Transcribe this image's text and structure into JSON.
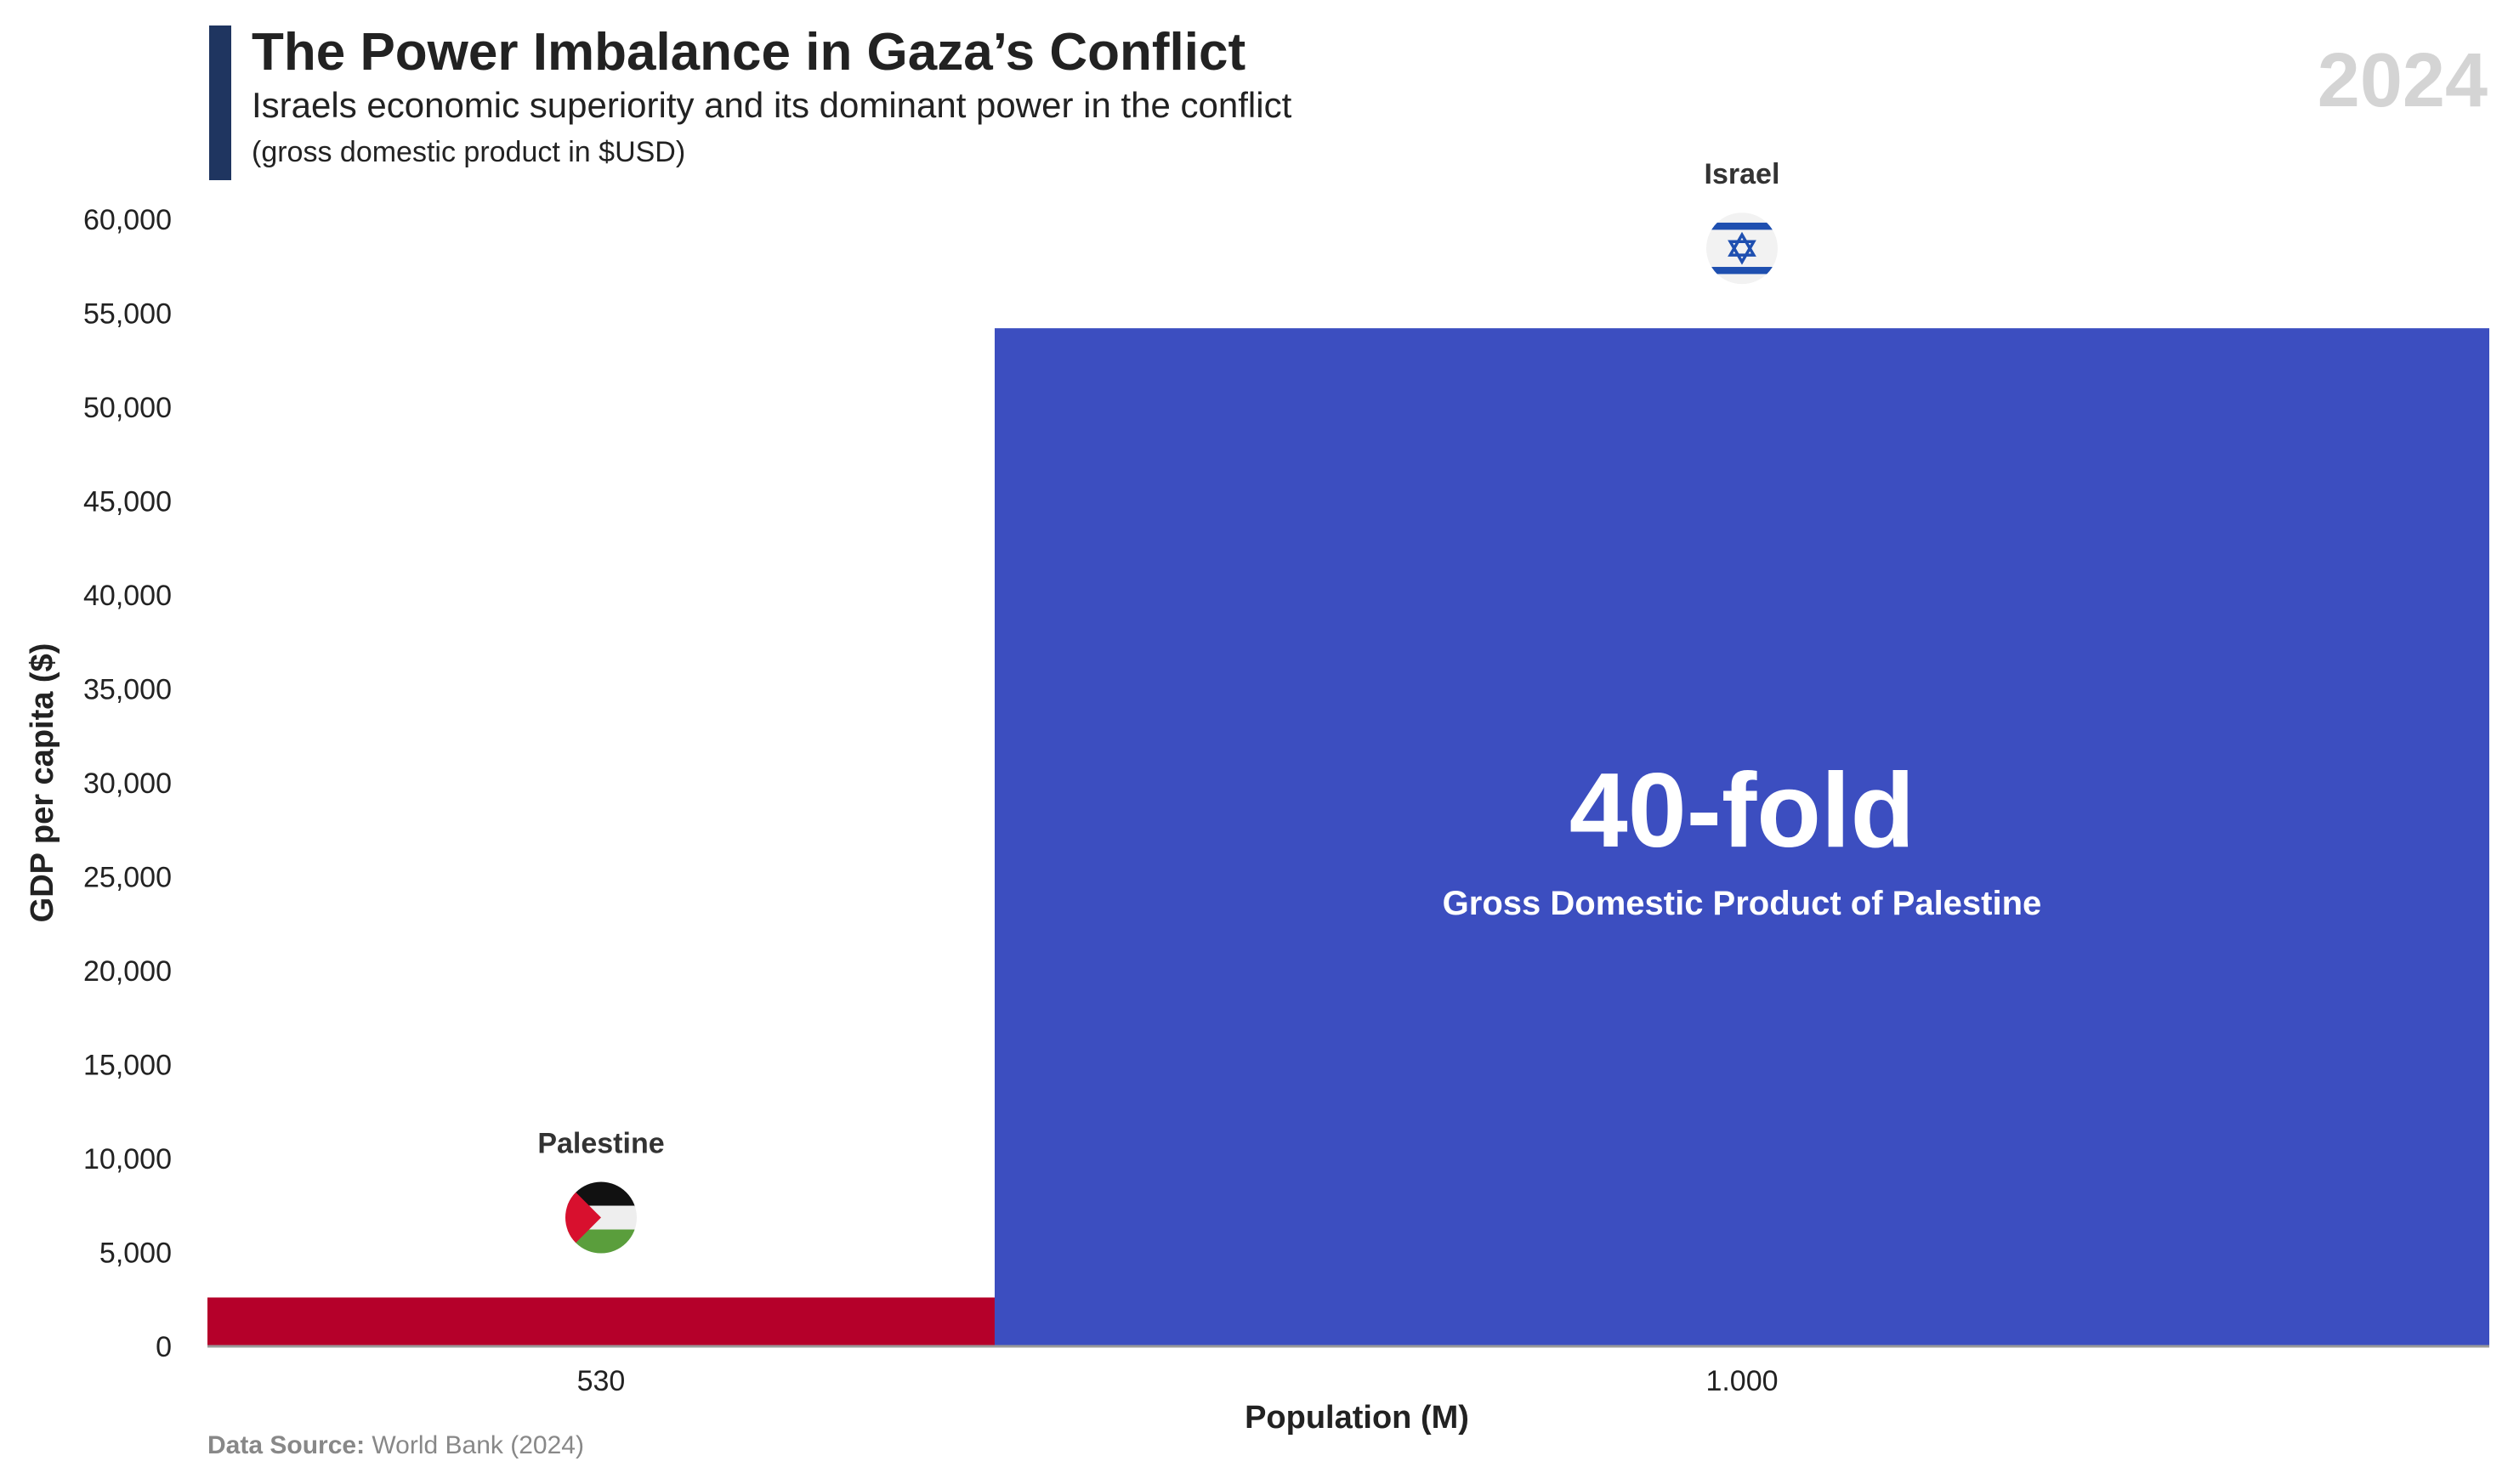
{
  "header": {
    "title": "The Power Imbalance in Gaza’s Conflict",
    "subtitle": "Israels economic superiority and its dominant power in the conflict",
    "note": "(gross domestic product in $USD)",
    "year": "2024",
    "accent_color": "#1f3560"
  },
  "footer": {
    "source_label": "Data Source:",
    "source_text": "World Bank (2024)"
  },
  "chart_data": {
    "type": "bar",
    "xlabel": "Population (M)",
    "ylabel": "GDP per capita ($)",
    "ylim": [
      0,
      60000
    ],
    "yticks": [
      0,
      5000,
      10000,
      15000,
      20000,
      25000,
      30000,
      35000,
      40000,
      45000,
      50000,
      55000,
      60000
    ],
    "ytick_labels": [
      "0",
      "5,000",
      "10,000",
      "15,000",
      "20,000",
      "25,000",
      "30,000",
      "35,000",
      "40,000",
      "45,000",
      "50,000",
      "55,000",
      "60,000"
    ],
    "grid": false,
    "bars": [
      {
        "name": "Palestine",
        "x_label": "530",
        "value": 2600,
        "relative_width": 0.345,
        "color": "#b5002a",
        "flag": "palestine-flag-icon"
      },
      {
        "name": "Israel",
        "x_label": "1.000",
        "value": 54200,
        "relative_width": 0.655,
        "color": "#3c4ec0",
        "flag": "israel-flag-icon"
      }
    ],
    "annotation": {
      "big": "40-fold",
      "small": "Gross Domestic Product of Palestine"
    }
  }
}
